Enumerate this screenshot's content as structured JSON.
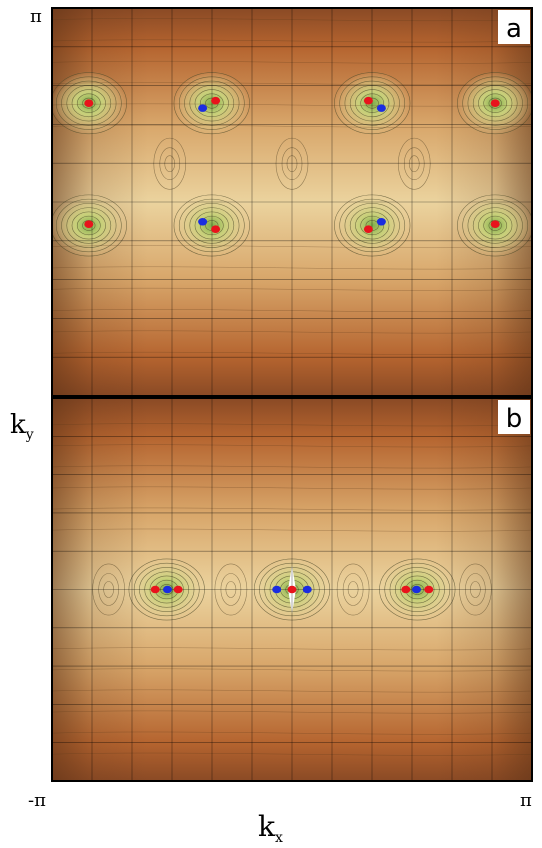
{
  "axes": {
    "ky_top": "π",
    "ky_label": "k",
    "ky_sub": "y",
    "kx_left": "-π",
    "kx_right": "π",
    "kx_label": "k",
    "kx_sub": "x"
  },
  "panels": [
    {
      "label": "a",
      "dots": [
        {
          "x": -2.66,
          "y": 1.6,
          "color": "red"
        },
        {
          "x": -1.0,
          "y": 1.64,
          "color": "red"
        },
        {
          "x": -1.17,
          "y": 1.52,
          "color": "blue"
        },
        {
          "x": 1.0,
          "y": 1.64,
          "color": "red"
        },
        {
          "x": 1.17,
          "y": 1.52,
          "color": "blue"
        },
        {
          "x": 2.66,
          "y": 1.6,
          "color": "red"
        },
        {
          "x": -2.66,
          "y": -0.36,
          "color": "red"
        },
        {
          "x": -1.0,
          "y": -0.44,
          "color": "red"
        },
        {
          "x": -1.17,
          "y": -0.32,
          "color": "blue"
        },
        {
          "x": 1.0,
          "y": -0.44,
          "color": "red"
        },
        {
          "x": 1.17,
          "y": -0.32,
          "color": "blue"
        },
        {
          "x": 2.66,
          "y": -0.36,
          "color": "red"
        }
      ]
    },
    {
      "label": "b",
      "dots": [
        {
          "x": -1.79,
          "y": 0.0,
          "color": "red"
        },
        {
          "x": -1.63,
          "y": 0.0,
          "color": "blue"
        },
        {
          "x": -1.49,
          "y": 0.0,
          "color": "red"
        },
        {
          "x": -0.2,
          "y": 0.0,
          "color": "blue"
        },
        {
          "x": 0.0,
          "y": 0.0,
          "color": "red"
        },
        {
          "x": 0.2,
          "y": 0.0,
          "color": "blue"
        },
        {
          "x": 1.49,
          "y": 0.0,
          "color": "red"
        },
        {
          "x": 1.63,
          "y": 0.0,
          "color": "blue"
        },
        {
          "x": 1.79,
          "y": 0.0,
          "color": "red"
        }
      ]
    }
  ],
  "colors": {
    "red": "#e8141c",
    "blue": "#1a2ee0",
    "dark": "#a65a2a",
    "light": "#e6c98f",
    "green": "#9fbf5a"
  }
}
